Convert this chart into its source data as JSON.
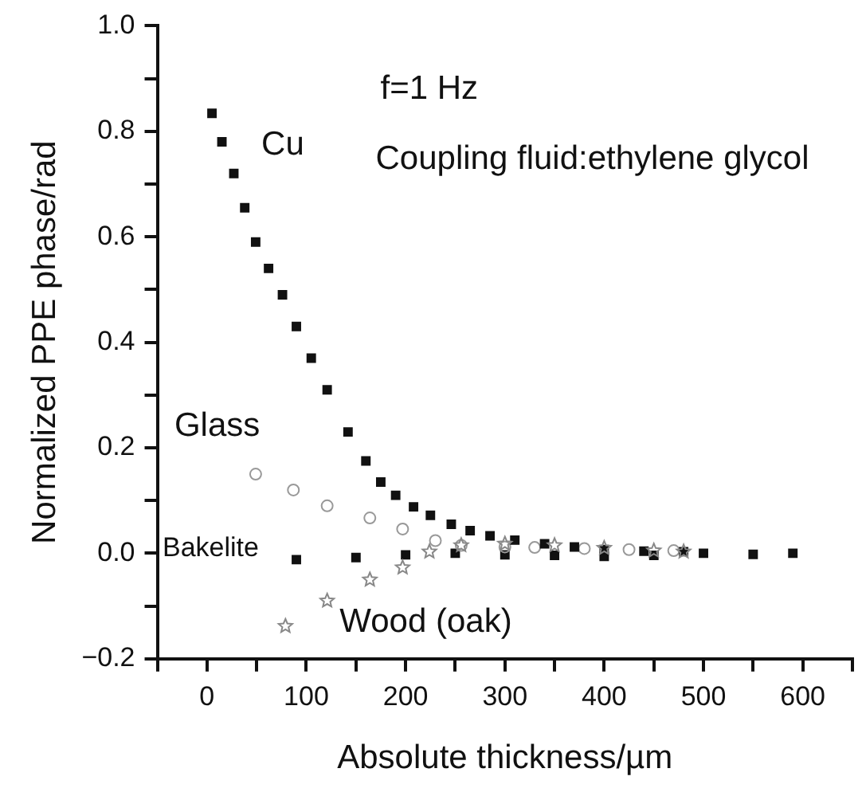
{
  "chart_data": {
    "type": "scatter",
    "xlabel": "Absolute thickness/µm",
    "ylabel": "Normalized PPE phase/rad",
    "annotations": [
      "f=1 Hz",
      "Coupling fluid:ethylene glycol"
    ],
    "xlim": [
      -50,
      650
    ],
    "xticks": [
      {
        "value": -50,
        "label": null
      },
      0,
      {
        "value": 50,
        "label": null
      },
      100,
      {
        "value": 150,
        "label": null
      },
      200,
      {
        "value": 250,
        "label": null
      },
      300,
      {
        "value": 350,
        "label": null
      },
      400,
      {
        "value": 450,
        "label": null
      },
      500,
      {
        "value": 550,
        "label": null
      },
      600,
      {
        "value": 650,
        "label": null
      }
    ],
    "ylim": [
      -0.2,
      1.0
    ],
    "yticks": [
      {
        "value": -0.2,
        "label": "−0.2"
      },
      {
        "value": -0.1,
        "label": null
      },
      {
        "value": 0,
        "label": "0.0"
      },
      {
        "value": 0.1,
        "label": null
      },
      0.2,
      {
        "value": 0.3,
        "label": null
      },
      0.4,
      {
        "value": 0.5,
        "label": null
      },
      0.6,
      {
        "value": 0.7,
        "label": null
      },
      0.8,
      {
        "value": 0.9,
        "label": null
      },
      {
        "value": 1.0,
        "label": "1.0"
      }
    ],
    "grid": false,
    "legend": false,
    "series": [
      {
        "name": "Cu",
        "color": "#111111",
        "marker": "square",
        "x": [
          5,
          15,
          27,
          38,
          49,
          62,
          76,
          90,
          105,
          121,
          142,
          160,
          175,
          190,
          208,
          225,
          246,
          265,
          285,
          310,
          340,
          370,
          400,
          440,
          480
        ],
        "values": [
          0.834,
          0.78,
          0.72,
          0.655,
          0.59,
          0.54,
          0.49,
          0.43,
          0.37,
          0.31,
          0.23,
          0.175,
          0.135,
          0.11,
          0.088,
          0.072,
          0.055,
          0.043,
          0.033,
          0.025,
          0.018,
          0.012,
          0.007,
          0.004,
          0.003
        ]
      },
      {
        "name": "Glass",
        "color": "#999999",
        "marker": "circle",
        "x": [
          49,
          87,
          121,
          164,
          197,
          230,
          256,
          300,
          330,
          380,
          425,
          470
        ],
        "values": [
          0.15,
          0.12,
          0.09,
          0.067,
          0.046,
          0.024,
          0.015,
          0.012,
          0.011,
          0.009,
          0.007,
          0.005
        ]
      },
      {
        "name": "Bakelite",
        "color": "#111111",
        "marker": "square",
        "x": [
          90,
          150,
          200,
          250,
          300,
          350,
          400,
          450,
          500,
          550,
          590
        ],
        "values": [
          -0.012,
          -0.008,
          -0.003,
          0.0,
          -0.003,
          -0.004,
          -0.006,
          -0.004,
          0.0,
          -0.002,
          0.0
        ]
      },
      {
        "name": "Wood (oak)",
        "color": "#888888",
        "marker": "star",
        "x": [
          79,
          121,
          164,
          197,
          224,
          256,
          300,
          350,
          400,
          450,
          480
        ],
        "values": [
          -0.138,
          -0.09,
          -0.05,
          -0.027,
          0.003,
          0.015,
          0.018,
          0.015,
          0.01,
          0.005,
          0.003
        ]
      }
    ]
  }
}
